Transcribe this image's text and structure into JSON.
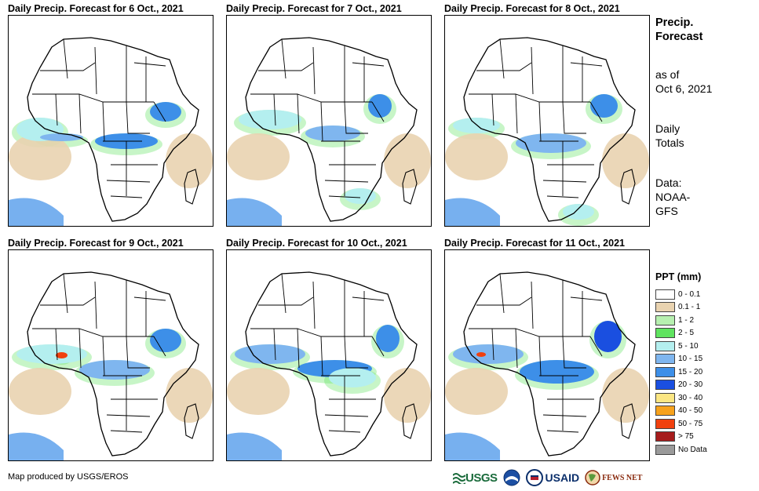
{
  "panels": [
    {
      "title": "Daily Precip. Forecast for 6 Oct., 2021"
    },
    {
      "title": "Daily Precip. Forecast for 7 Oct., 2021"
    },
    {
      "title": "Daily Precip. Forecast for 8 Oct., 2021"
    },
    {
      "title": "Daily Precip. Forecast for 9 Oct., 2021"
    },
    {
      "title": "Daily Precip. Forecast for 10 Oct., 2021"
    },
    {
      "title": "Daily Precip. Forecast for 11 Oct., 2021"
    }
  ],
  "side": {
    "line1": "Precip.",
    "line2": "Forecast",
    "asof1": "as of",
    "asof2": "Oct 6, 2021",
    "totals1": "Daily",
    "totals2": "Totals",
    "data1": "Data:",
    "data2": "NOAA-",
    "data3": "GFS"
  },
  "legend": {
    "title": "PPT (mm)",
    "items": [
      {
        "label": "0 - 0.1",
        "color": "#ffffff"
      },
      {
        "label": "0.1 - 1",
        "color": "#e9d3b0"
      },
      {
        "label": "1 - 2",
        "color": "#b7f0b0"
      },
      {
        "label": "2 - 5",
        "color": "#5fe35f"
      },
      {
        "label": "5 - 10",
        "color": "#b4efef"
      },
      {
        "label": "10 - 15",
        "color": "#7fb6ef"
      },
      {
        "label": "15 - 20",
        "color": "#3d8fe8"
      },
      {
        "label": "20 - 30",
        "color": "#1a4fe0"
      },
      {
        "label": "30 - 40",
        "color": "#fbe683"
      },
      {
        "label": "40 - 50",
        "color": "#f7a21c"
      },
      {
        "label": "50 - 75",
        "color": "#f0400e"
      },
      {
        "label": "> 75",
        "color": "#a61c1c"
      },
      {
        "label": "No Data",
        "color": "#9a9a9a"
      }
    ]
  },
  "credit": "Map produced by USGS/EROS",
  "logos": {
    "usgs": "USGS",
    "usaid": "USAID",
    "fews": "FEWS NET"
  }
}
